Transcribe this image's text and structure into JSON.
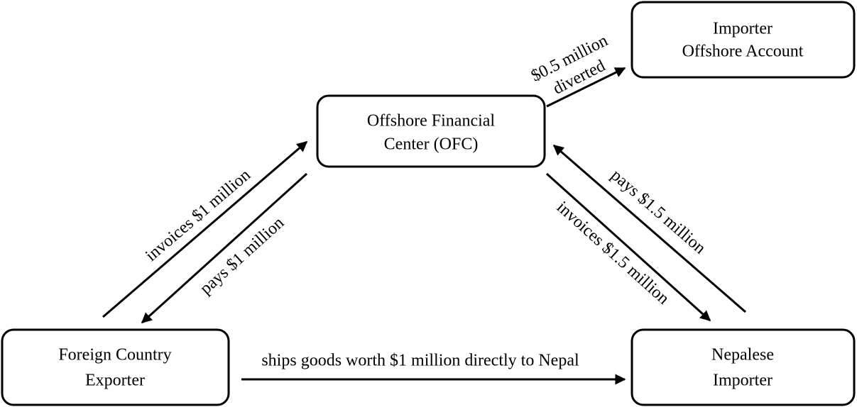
{
  "nodes": [
    {
      "label": [
        "Importer",
        "Offshore Account"
      ]
    },
    {
      "label": [
        "Offshore Financial",
        "Center (OFC)"
      ]
    },
    {
      "label": [
        "Foreign Country",
        "Exporter"
      ]
    },
    {
      "label": [
        "Nepalese",
        "Importer"
      ]
    }
  ],
  "edges": [
    {
      "label": [
        "$0.5 million",
        "diverted"
      ]
    },
    {
      "label": [
        "invoices $1 million"
      ]
    },
    {
      "label": [
        "pays $1 million"
      ]
    },
    {
      "label": [
        "pays $1.5 million"
      ]
    },
    {
      "label": [
        "invoices $1.5 million"
      ]
    },
    {
      "label": [
        "ships goods worth $1 million directly to Nepal"
      ]
    }
  ]
}
